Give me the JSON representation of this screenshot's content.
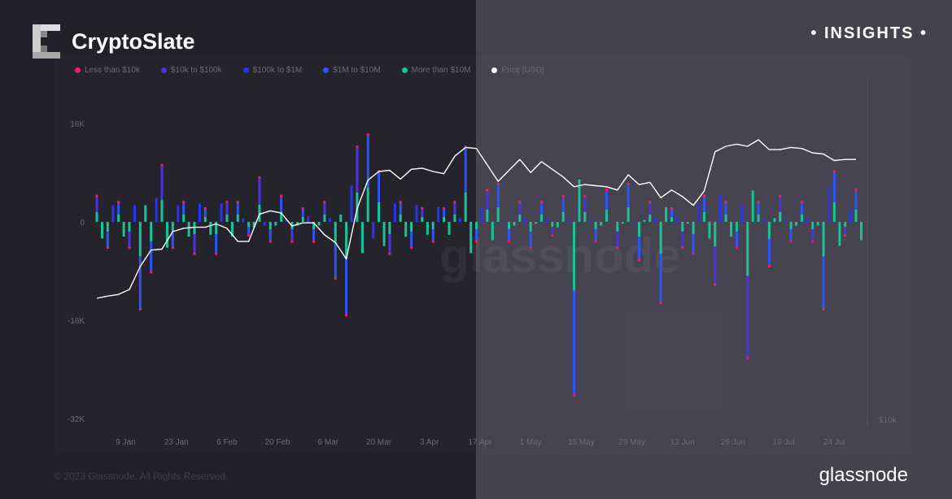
{
  "header": {
    "brand": "CryptoSlate",
    "badge": "• INSIGHTS •"
  },
  "footer": {
    "copyright": "© 2023 Glassnode. All Rights Reserved.",
    "logo_text": "glassnode",
    "watermark": "glassnode"
  },
  "colors": {
    "less_10k": "#f0215c",
    "10k_100k": "#4b32e6",
    "100k_1m": "#2a34f0",
    "1m_10m": "#2d55f5",
    "more_10m": "#17c49a",
    "price": "#ffffff"
  },
  "chart_data": {
    "type": "bar",
    "legend_placement": "top-left",
    "legend": [
      {
        "name": "Less than $10k",
        "color": "#f0215c"
      },
      {
        "name": "$10k to $100k",
        "color": "#4b32e6"
      },
      {
        "name": "$100k to $1M",
        "color": "#2a34f0"
      },
      {
        "name": "$1M to $10M",
        "color": "#2d55f5"
      },
      {
        "name": "More than $10M",
        "color": "#17c49a"
      },
      {
        "name": "Price [USD]",
        "color": "#ffffff"
      }
    ],
    "y_ticks": [
      "16K",
      "0",
      "-16K",
      "-32K"
    ],
    "ylim": [
      -32000,
      16000
    ],
    "y2_ticks": [
      "$10k"
    ],
    "x_ticks": [
      "9 Jan",
      "23 Jan",
      "6 Feb",
      "20 Feb",
      "6 Mar",
      "20 Mar",
      "3 Apr",
      "17 Apr",
      "1 May",
      "15 May",
      "29 May",
      "12 Jun",
      "26 Jun",
      "10 Jul",
      "24 Jul"
    ],
    "x_start": "2023-01-01",
    "x_step_days": 3,
    "net_flow": [
      4000,
      -4000,
      3000,
      -4000,
      -14000,
      -8000,
      9000,
      -4000,
      3000,
      -5000,
      2000,
      -5000,
      3000,
      3000,
      -2000,
      7000,
      -3000,
      4000,
      -3000,
      2000,
      -3000,
      3000,
      -9000,
      -15000,
      12000,
      14000,
      8000,
      -5000,
      3000,
      -4000,
      2000,
      -3000,
      2000,
      3000,
      12000,
      -3000,
      5000,
      6000,
      -3000,
      3000,
      -4000,
      3000,
      -2000,
      4000,
      -28000,
      4000,
      -3000,
      5000,
      -4000,
      6000,
      -6000,
      3000,
      -13000,
      2000,
      -4000,
      -5000,
      4000,
      -10000,
      3000,
      -4000,
      -22000,
      3000,
      -7000,
      4000,
      -3000,
      3000,
      -3000,
      -14000,
      8000,
      -2000,
      5000
    ],
    "price_usd": [
      16600,
      16800,
      16950,
      17400,
      19500,
      21000,
      21100,
      22700,
      23000,
      23100,
      23100,
      23400,
      23000,
      21800,
      21800,
      24300,
      24600,
      24400,
      23200,
      23500,
      23500,
      22400,
      21700,
      20200,
      24800,
      27400,
      28200,
      28300,
      27500,
      28400,
      28500,
      28200,
      28000,
      29600,
      30400,
      30300,
      28800,
      27300,
      28300,
      29300,
      28100,
      29100,
      28400,
      27700,
      26800,
      27000,
      26900,
      26800,
      26500,
      27900,
      27000,
      27200,
      25800,
      26500,
      25900,
      25100,
      26400,
      30000,
      30500,
      30700,
      30500,
      31100,
      30200,
      30200,
      30400,
      30300,
      29900,
      29800,
      29200,
      29300,
      29300
    ]
  }
}
